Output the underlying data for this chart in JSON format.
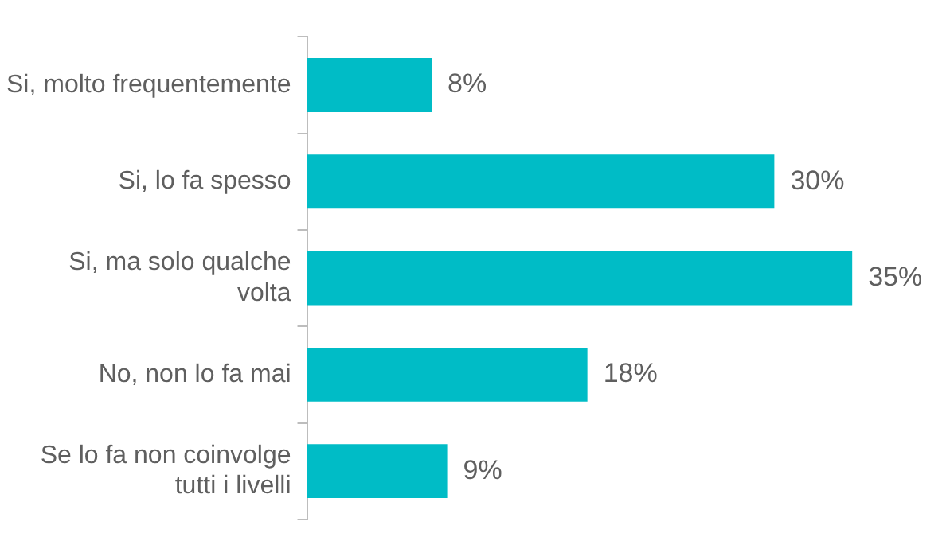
{
  "chart_data": {
    "type": "bar",
    "orientation": "horizontal",
    "categories": [
      "Si, molto frequentemente",
      "Si, lo fa spesso",
      "Si, ma solo qualche volta",
      "No, non lo fa mai",
      "Se lo fa non coinvolge tutti i livelli"
    ],
    "values": [
      8,
      30,
      35,
      18,
      9
    ],
    "value_labels": [
      "8%",
      "30%",
      "35%",
      "18%",
      "9%"
    ],
    "color": "#00bcc6",
    "grid": false,
    "legend": false
  }
}
